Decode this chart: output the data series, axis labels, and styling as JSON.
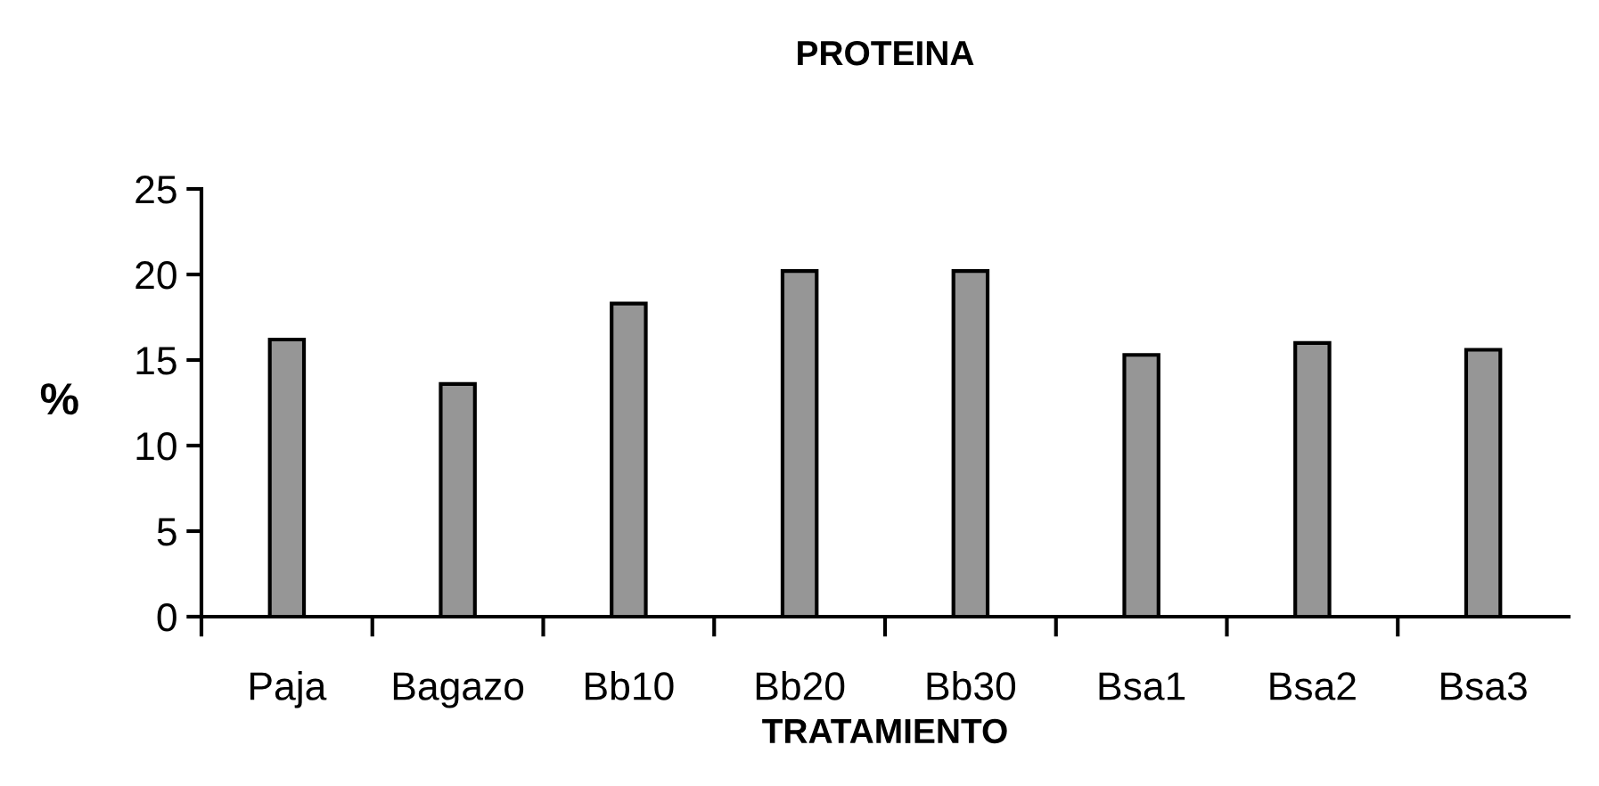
{
  "chart_data": {
    "type": "bar",
    "title": "PROTEINA",
    "xlabel": "TRATAMIENTO",
    "ylabel": "%",
    "categories": [
      "Paja",
      "Bagazo",
      "Bb10",
      "Bb20",
      "Bb30",
      "Bsa1",
      "Bsa2",
      "Bsa3"
    ],
    "values": [
      16.2,
      13.6,
      18.3,
      20.2,
      20.2,
      15.3,
      16.0,
      15.6
    ],
    "color": "#969696",
    "ylim": [
      0,
      25
    ],
    "yticks": [
      0,
      5,
      10,
      15,
      20,
      25
    ],
    "grid": false,
    "legend": false
  }
}
